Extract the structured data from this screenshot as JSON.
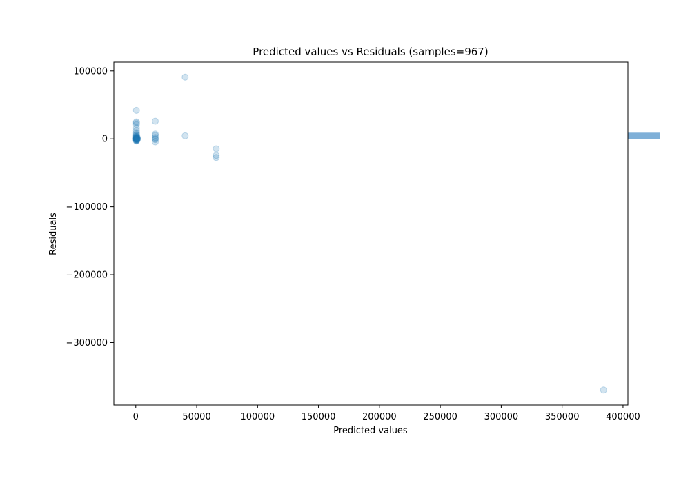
{
  "chart_data": {
    "type": "scatter",
    "title": "Predicted values vs Residuals (samples=967)",
    "xlabel": "Predicted values",
    "ylabel": "Residuals",
    "xlim": [
      -18000,
      404000
    ],
    "ylim": [
      -392000,
      113000
    ],
    "xticks": [
      0,
      50000,
      100000,
      150000,
      200000,
      250000,
      300000,
      350000,
      400000
    ],
    "xtick_labels": [
      "0",
      "50000",
      "100000",
      "150000",
      "200000",
      "250000",
      "300000",
      "350000",
      "400000"
    ],
    "yticks": [
      100000,
      0,
      -100000,
      -200000,
      -300000
    ],
    "ytick_labels": [
      "100000",
      "0",
      "−100000",
      "−200000",
      "−300000"
    ],
    "grid": false,
    "marker_color": "#1f77b4",
    "marker_alpha": 0.2,
    "series": [
      {
        "points": [
          {
            "x": 500,
            "y": 42000
          },
          {
            "x": 500,
            "y": 25000
          },
          {
            "x": 500,
            "y": 23500
          },
          {
            "x": 500,
            "y": 21000
          },
          {
            "x": 500,
            "y": 16000
          },
          {
            "x": 500,
            "y": 12000
          },
          {
            "x": 500,
            "y": 9000
          },
          {
            "x": 500,
            "y": 7000
          },
          {
            "x": 500,
            "y": 5500
          },
          {
            "x": 500,
            "y": 4500
          },
          {
            "x": 500,
            "y": 3500
          },
          {
            "x": 500,
            "y": 3000
          },
          {
            "x": 500,
            "y": 2500
          },
          {
            "x": 500,
            "y": 2000
          },
          {
            "x": 500,
            "y": 1500
          },
          {
            "x": 500,
            "y": 1000
          },
          {
            "x": 500,
            "y": 700
          },
          {
            "x": 500,
            "y": 500
          },
          {
            "x": 500,
            "y": 300
          },
          {
            "x": 500,
            "y": 100
          },
          {
            "x": 500,
            "y": 0
          },
          {
            "x": 500,
            "y": -200
          },
          {
            "x": 500,
            "y": -500
          },
          {
            "x": 500,
            "y": -800
          },
          {
            "x": 500,
            "y": -1000
          },
          {
            "x": 500,
            "y": -1500
          },
          {
            "x": 500,
            "y": -2000
          },
          {
            "x": 500,
            "y": -2500
          },
          {
            "x": 500,
            "y": -3000
          },
          {
            "x": 1200,
            "y": 2000
          },
          {
            "x": 1200,
            "y": 500
          },
          {
            "x": 1200,
            "y": -500
          },
          {
            "x": 1200,
            "y": -1500
          },
          {
            "x": 1200,
            "y": 1000
          },
          {
            "x": 1200,
            "y": 0
          },
          {
            "x": 16000,
            "y": 26000
          },
          {
            "x": 16000,
            "y": 7000
          },
          {
            "x": 16000,
            "y": 5000
          },
          {
            "x": 16000,
            "y": 2000
          },
          {
            "x": 16000,
            "y": 0
          },
          {
            "x": 16000,
            "y": -1000
          },
          {
            "x": 16000,
            "y": -4500
          },
          {
            "x": 40500,
            "y": 91000
          },
          {
            "x": 40500,
            "y": 4500
          },
          {
            "x": 66000,
            "y": -14500
          },
          {
            "x": 66000,
            "y": -24500
          },
          {
            "x": 66000,
            "y": -27500
          },
          {
            "x": 384000,
            "y": -370000
          }
        ]
      }
    ],
    "side_marker": {
      "y": 4000,
      "color": "#7fb0d8"
    }
  }
}
